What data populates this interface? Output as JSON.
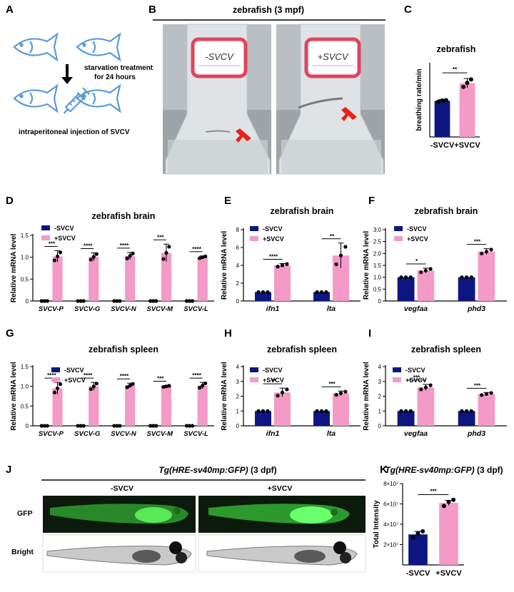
{
  "panel_labels": {
    "A": "A",
    "B": "B",
    "C": "C",
    "D": "D",
    "E": "E",
    "F": "F",
    "G": "G",
    "H": "H",
    "I": "I",
    "J": "J",
    "K": "K"
  },
  "panel_a": {
    "step1": "starvation treatment",
    "step2": "for 24 hours",
    "step3": "intraperitoneal injection of SVCV"
  },
  "panel_b": {
    "title": "zebrafish (3 mpf)",
    "label_left": "-SVCV",
    "label_right": "+SVCV"
  },
  "panel_j": {
    "title_italic": "Tg(HRE-sv40mp:GFP)",
    "title_rest": " (3 dpf)",
    "col_left": "-SVCV",
    "col_right": "+SVCV",
    "row_gfp": "GFP",
    "row_bright": "Bright"
  },
  "colors": {
    "minus": "#0d1680",
    "plus": "#f49ac7",
    "fish_outline": "#5b9bd5",
    "gfp_bg": "#0b1a0b",
    "gfp": "#3fd13f"
  },
  "chart_data": [
    {
      "id": "C",
      "type": "bar",
      "title": "zebrafish",
      "ylabel": "breathing rate/min",
      "categories": [
        "-SVCV",
        "+SVCV"
      ],
      "values": [
        195,
        290
      ],
      "errors": [
        8,
        25
      ],
      "points": [
        [
          190,
          196,
          198
        ],
        [
          270,
          292,
          310
        ]
      ],
      "ylim": [
        0,
        400
      ],
      "yticks": [],
      "sig": [
        {
          "text": "**"
        }
      ]
    },
    {
      "id": "D",
      "type": "bar",
      "title": "zebrafish brain",
      "ylabel": "Relative mRNA level",
      "ylim": [
        0,
        1.5
      ],
      "yticks": [
        0,
        0.5,
        1.0,
        1.5
      ],
      "categories": [
        "SVCV-P",
        "SVCV-G",
        "SVCV-N",
        "SVCV-M",
        "SVCV-L"
      ],
      "series": [
        {
          "name": "-SVCV",
          "values": [
            0,
            0,
            0,
            0,
            0
          ]
        },
        {
          "name": "+SVCV",
          "values": [
            1.02,
            1.01,
            1.03,
            1.1,
            1.0
          ],
          "errors": [
            0.13,
            0.09,
            0.08,
            0.2,
            0.03
          ]
        }
      ],
      "sig": [
        "***",
        "****",
        "****",
        "***",
        "****"
      ]
    },
    {
      "id": "E",
      "type": "bar",
      "title": "zebrafish brain",
      "ylabel": "Relative mRNA level",
      "ylim": [
        0,
        8
      ],
      "yticks": [
        0,
        2,
        4,
        6,
        8
      ],
      "categories": [
        "ifn1",
        "lta"
      ],
      "series": [
        {
          "name": "-SVCV",
          "values": [
            1,
            1
          ]
        },
        {
          "name": "+SVCV",
          "values": [
            4,
            5.1
          ],
          "errors": [
            0.2,
            1.4
          ]
        }
      ],
      "sig": [
        "****",
        "**"
      ]
    },
    {
      "id": "F",
      "type": "bar",
      "title": "zebrafish brain",
      "ylabel": "Relative mRNA level",
      "ylim": [
        0,
        3.0
      ],
      "yticks": [
        0,
        0.5,
        1.0,
        1.5,
        2.0,
        2.5,
        3.0
      ],
      "categories": [
        "vegfaa",
        "phd3"
      ],
      "series": [
        {
          "name": "-SVCV",
          "values": [
            1,
            1
          ]
        },
        {
          "name": "+SVCV",
          "values": [
            1.28,
            2.08
          ],
          "errors": [
            0.1,
            0.12
          ]
        }
      ],
      "sig": [
        "*",
        "***"
      ]
    },
    {
      "id": "G",
      "type": "bar",
      "title": "zebrafish spleen",
      "ylabel": "Relative mRNA level",
      "ylim": [
        0,
        1.5
      ],
      "yticks": [
        0,
        0.5,
        1.0,
        1.5
      ],
      "categories": [
        "SVCV-P",
        "SVCV-G",
        "SVCV-N",
        "SVCV-M",
        "SVCV-L"
      ],
      "series": [
        {
          "name": "-SVCV",
          "values": [
            0,
            0,
            0,
            0,
            0
          ]
        },
        {
          "name": "+SVCV",
          "values": [
            0.95,
            1.0,
            1.02,
            1.0,
            1.02
          ],
          "errors": [
            0.15,
            0.1,
            0.06,
            0.02,
            0.08
          ]
        }
      ],
      "sig": [
        "****",
        "****",
        "****",
        "***",
        "****"
      ]
    },
    {
      "id": "H",
      "type": "bar",
      "title": "zebrafish spleen",
      "ylabel": "Relative mRNA level",
      "ylim": [
        0,
        4
      ],
      "yticks": [
        0,
        1,
        2,
        3,
        4
      ],
      "categories": [
        "ifn1",
        "lta"
      ],
      "series": [
        {
          "name": "-SVCV",
          "values": [
            1,
            1
          ]
        },
        {
          "name": "+SVCV",
          "values": [
            2.25,
            2.2
          ],
          "errors": [
            0.3,
            0.15
          ]
        }
      ],
      "sig": [
        "**",
        "***"
      ]
    },
    {
      "id": "I",
      "type": "bar",
      "title": "zebrafish spleen",
      "ylabel": "Relative mRNA level",
      "ylim": [
        0,
        4
      ],
      "yticks": [
        0,
        1,
        2,
        3,
        4
      ],
      "categories": [
        "vegfaa",
        "phd3"
      ],
      "series": [
        {
          "name": "-SVCV",
          "values": [
            1,
            1
          ]
        },
        {
          "name": "+SVCV",
          "values": [
            2.6,
            2.15
          ],
          "errors": [
            0.2,
            0.1
          ]
        }
      ],
      "sig": [
        "***",
        "***"
      ]
    },
    {
      "id": "K",
      "type": "bar",
      "title": "",
      "title_italic": "Tg(HRE-sv40mp:GFP)",
      "title_rest": " (3 dpf)",
      "ylabel": "Total Intensity",
      "ylim": [
        0,
        80000000
      ],
      "yticks": [
        20000000,
        40000000,
        60000000,
        80000000
      ],
      "ytick_labels": [
        "2×10⁷",
        "4×10⁷",
        "6×10⁷",
        "8×10⁷"
      ],
      "categories": [
        "-SVCV",
        "+SVCV"
      ],
      "values": [
        30000000,
        61000000
      ],
      "errors": [
        3000000,
        2500000
      ],
      "points": [
        [
          27000000,
          31000000,
          33000000
        ],
        [
          58000000,
          62000000,
          64000000
        ]
      ],
      "sig": [
        {
          "text": "***"
        }
      ]
    }
  ]
}
